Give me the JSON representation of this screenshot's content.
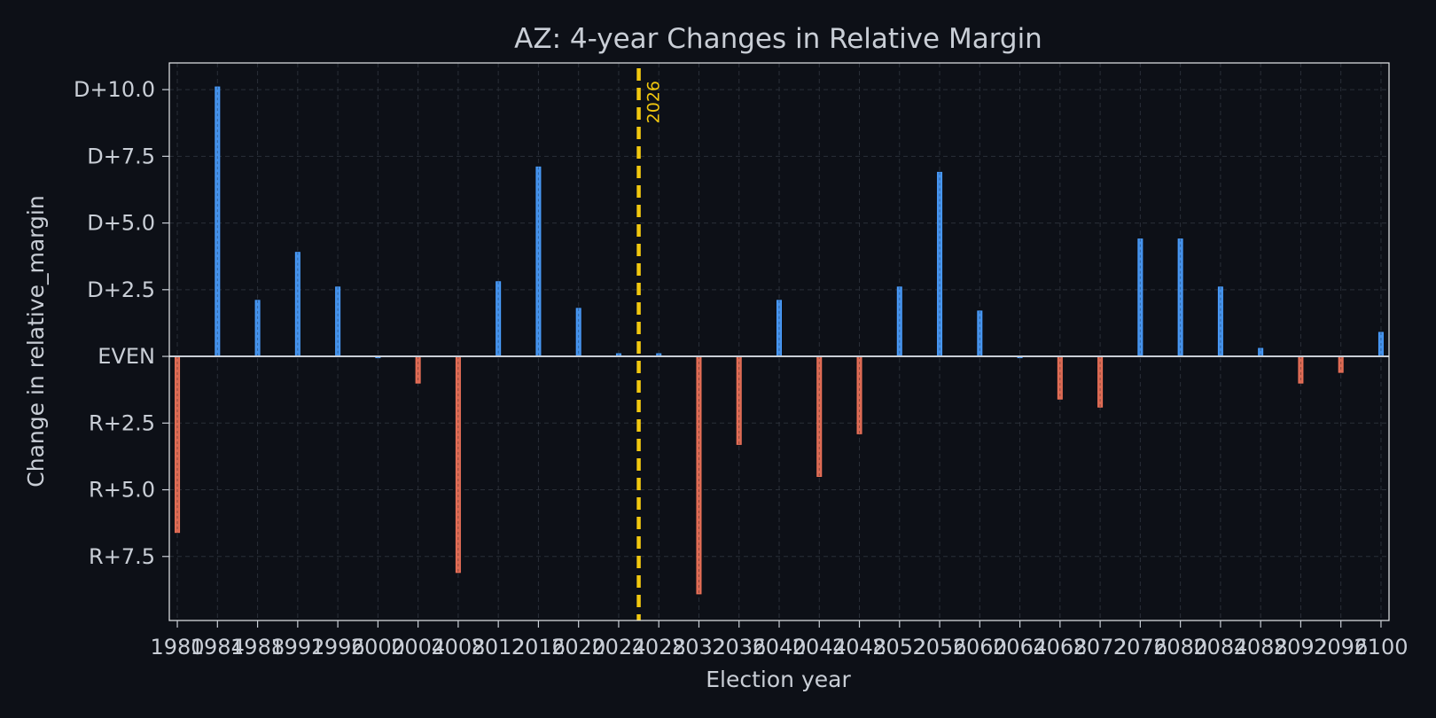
{
  "chart_data": {
    "type": "bar",
    "title": "AZ: 4-year Changes in Relative Margin",
    "xlabel": "Election year",
    "ylabel": "Change in relative_margin",
    "x": [
      1980,
      1984,
      1988,
      1992,
      1996,
      2000,
      2004,
      2008,
      2012,
      2016,
      2020,
      2024,
      2028,
      2032,
      2036,
      2040,
      2044,
      2048,
      2052,
      2056,
      2060,
      2064,
      2068,
      2072,
      2076,
      2080,
      2084,
      2088,
      2092,
      2096,
      2100
    ],
    "values": [
      -6.6,
      10.1,
      2.1,
      3.9,
      2.6,
      0.0,
      -1.0,
      -8.1,
      2.8,
      7.1,
      1.8,
      0.1,
      0.1,
      -8.9,
      -3.3,
      2.1,
      -4.5,
      -2.9,
      2.6,
      6.9,
      1.7,
      0.0,
      -1.6,
      -1.9,
      4.4,
      4.4,
      2.6,
      0.3,
      -1.0,
      -0.6,
      0.9
    ],
    "ylim": [
      -9.9,
      11.0
    ],
    "y_ticks": [
      {
        "value": 10.0,
        "label": "D+10.0"
      },
      {
        "value": 7.5,
        "label": "D+7.5"
      },
      {
        "value": 5.0,
        "label": "D+5.0"
      },
      {
        "value": 2.5,
        "label": "D+2.5"
      },
      {
        "value": 0.0,
        "label": "EVEN"
      },
      {
        "value": -2.5,
        "label": "R+2.5"
      },
      {
        "value": -5.0,
        "label": "R+5.0"
      },
      {
        "value": -7.5,
        "label": "R+7.5"
      }
    ],
    "xlim": [
      1979.2,
      2100.8
    ],
    "x_ticks": [
      1980,
      1984,
      1988,
      1992,
      1996,
      2000,
      2004,
      2008,
      2012,
      2016,
      2020,
      2024,
      2028,
      2032,
      2036,
      2040,
      2044,
      2048,
      2052,
      2056,
      2060,
      2064,
      2068,
      2072,
      2076,
      2080,
      2084,
      2088,
      2092,
      2096,
      2100
    ],
    "marker": {
      "x": 2026,
      "label": "2026",
      "color": "#f2c80f"
    },
    "colors": {
      "positive": "#4a9eff",
      "negative": "#f0735a",
      "background": "#0d1017",
      "grid": "#2a2f38",
      "text": "#c9ced6"
    },
    "grid": true,
    "legend": false
  }
}
